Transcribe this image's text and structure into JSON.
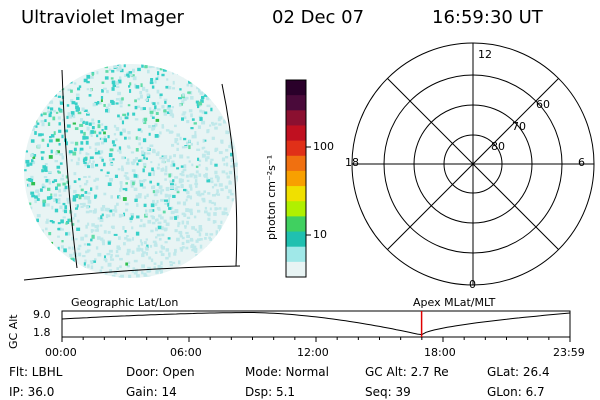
{
  "header": {
    "instrument": "Ultraviolet Imager",
    "date": "02 Dec 07",
    "time": "16:59:30 UT"
  },
  "colorbar": {
    "unit_label": "photon cm⁻²s⁻¹",
    "ticks": [
      "100",
      "10"
    ],
    "colors": [
      "#2a002a",
      "#4a0a3a",
      "#8b1030",
      "#c01020",
      "#e03018",
      "#f07010",
      "#f8a000",
      "#f0e000",
      "#b0f000",
      "#40d060",
      "#20c0b0",
      "#a0e8e8",
      "#e8f4f4"
    ]
  },
  "polar_grid": {
    "hour_labels": [
      "12",
      "18",
      "6",
      "0"
    ],
    "lat_labels": [
      "60",
      "70",
      "80"
    ]
  },
  "orbit_strip": {
    "left_label": "Geographic Lat/Lon",
    "right_label": "Apex MLat/MLT",
    "axis_label": "GC Alt",
    "y_ticks": [
      "9.0",
      "1.8"
    ],
    "time_ticks": [
      "00:00",
      "06:00",
      "12:00",
      "18:00",
      "23:59"
    ],
    "current_time_fraction": 0.7079,
    "marker_color": "#e00000"
  },
  "info": {
    "flt": "Flt: LBHL",
    "ip": "IP: 36.0",
    "door": "Door: Open",
    "gain": "Gain: 14",
    "mode": "Mode: Normal",
    "dsp": "Dsp:    5.1",
    "gc_alt": "GC Alt: 2.7 Re",
    "seq": "Seq: 39",
    "glat": "GLat:   26.4",
    "glon": "GLon:    6.7"
  }
}
